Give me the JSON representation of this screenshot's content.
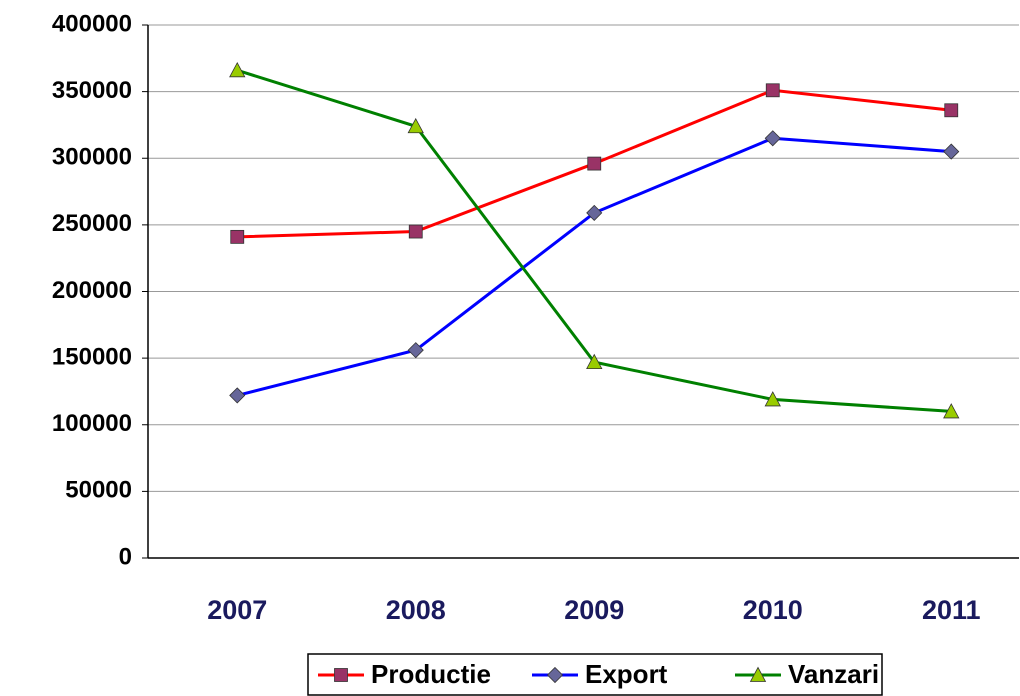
{
  "chart_data": {
    "type": "line",
    "categories": [
      "2007",
      "2008",
      "2009",
      "2010",
      "2011"
    ],
    "series": [
      {
        "name": "Productie",
        "color": "#ff0000",
        "marker_color": "#993366",
        "marker": "square",
        "values": [
          241000,
          245000,
          296000,
          351000,
          336000
        ]
      },
      {
        "name": "Export",
        "color": "#0000ff",
        "marker_color": "#666699",
        "marker": "diamond",
        "values": [
          122000,
          156000,
          259000,
          315000,
          305000
        ]
      },
      {
        "name": "Vanzari",
        "color": "#008000",
        "marker_color": "#99cc00",
        "marker": "triangle",
        "values": [
          366000,
          324000,
          147000,
          119000,
          110000
        ]
      }
    ],
    "ylim": [
      0,
      400000
    ],
    "yticks": [
      0,
      50000,
      100000,
      150000,
      200000,
      250000,
      300000,
      350000,
      400000
    ],
    "grid": true,
    "legend": "bottom"
  }
}
